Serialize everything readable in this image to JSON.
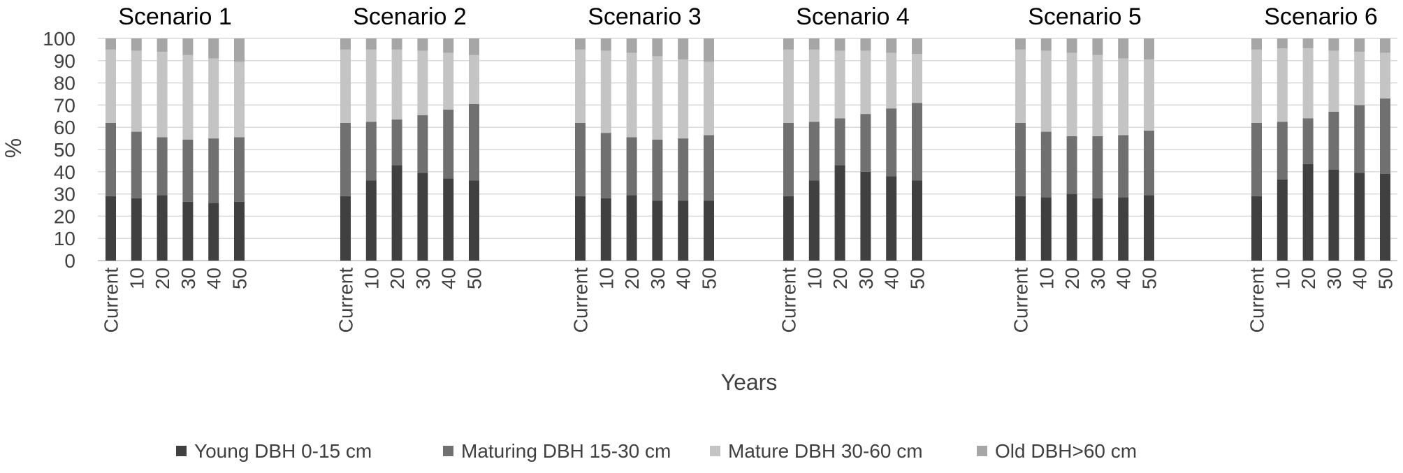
{
  "chart_data": {
    "type": "bar",
    "stacked": true,
    "stack_mode": "percent",
    "xlabel": "Years",
    "ylabel": "%",
    "ylim": [
      0,
      100
    ],
    "yticks": [
      0,
      10,
      20,
      30,
      40,
      50,
      60,
      70,
      80,
      90,
      100
    ],
    "grid": true,
    "legend_position": "bottom",
    "categories": [
      "Current",
      "10",
      "20",
      "30",
      "40",
      "50"
    ],
    "series_meta": [
      {
        "name": "Young DBH 0-15 cm",
        "color": "#404040"
      },
      {
        "name": "Maturing DBH 15-30 cm",
        "color": "#707070"
      },
      {
        "name": "Mature DBH 30-60 cm",
        "color": "#c4c4c4"
      },
      {
        "name": "Old DBH>60 cm",
        "color": "#a6a6a6"
      }
    ],
    "panels": [
      {
        "title": "Scenario 1",
        "series": [
          {
            "name": "Young DBH 0-15 cm",
            "values": [
              29,
              28,
              29.5,
              26.5,
              26,
              26.5
            ]
          },
          {
            "name": "Maturing DBH 15-30 cm",
            "values": [
              33,
              30,
              26,
              28,
              29,
              29
            ]
          },
          {
            "name": "Mature DBH 30-60 cm",
            "values": [
              33,
              36.5,
              38.5,
              38,
              36,
              34
            ]
          },
          {
            "name": "Old DBH>60 cm",
            "values": [
              5,
              5.5,
              6,
              7.5,
              9,
              10.5
            ]
          }
        ]
      },
      {
        "title": "Scenario 2",
        "series": [
          {
            "name": "Young DBH 0-15 cm",
            "values": [
              29,
              36,
              43,
              39.5,
              37,
              36
            ]
          },
          {
            "name": "Maturing DBH 15-30 cm",
            "values": [
              33,
              26.5,
              20.5,
              26,
              31,
              34.5
            ]
          },
          {
            "name": "Mature DBH 30-60 cm",
            "values": [
              33,
              32.5,
              31.5,
              29,
              25.5,
              22
            ]
          },
          {
            "name": "Old DBH>60 cm",
            "values": [
              5,
              5,
              5,
              5.5,
              6.5,
              7.5
            ]
          }
        ]
      },
      {
        "title": "Scenario 3",
        "series": [
          {
            "name": "Young DBH 0-15 cm",
            "values": [
              29,
              28,
              29.5,
              27,
              27,
              27
            ]
          },
          {
            "name": "Maturing DBH 15-30 cm",
            "values": [
              33,
              29.5,
              26,
              27.5,
              28,
              29.5
            ]
          },
          {
            "name": "Mature DBH 30-60 cm",
            "values": [
              33,
              37,
              38,
              37.5,
              35.5,
              33
            ]
          },
          {
            "name": "Old DBH>60 cm",
            "values": [
              5,
              5.5,
              6.5,
              8,
              9.5,
              10.5
            ]
          }
        ]
      },
      {
        "title": "Scenario 4",
        "series": [
          {
            "name": "Young DBH 0-15 cm",
            "values": [
              29,
              36,
              43,
              40,
              38,
              36
            ]
          },
          {
            "name": "Maturing DBH 15-30 cm",
            "values": [
              33,
              26.5,
              21,
              26,
              30.5,
              35
            ]
          },
          {
            "name": "Mature DBH 30-60 cm",
            "values": [
              33,
              32.5,
              30.5,
              28.5,
              25,
              22
            ]
          },
          {
            "name": "Old DBH>60 cm",
            "values": [
              5,
              5,
              5.5,
              5.5,
              6.5,
              7
            ]
          }
        ]
      },
      {
        "title": "Scenario 5",
        "series": [
          {
            "name": "Young DBH 0-15 cm",
            "values": [
              29,
              28.5,
              30,
              28,
              28.5,
              29.5
            ]
          },
          {
            "name": "Maturing DBH 15-30 cm",
            "values": [
              33,
              29.5,
              26,
              28,
              28,
              29
            ]
          },
          {
            "name": "Mature DBH 30-60 cm",
            "values": [
              33,
              36.5,
              37.5,
              36.5,
              34.5,
              32
            ]
          },
          {
            "name": "Old DBH>60 cm",
            "values": [
              5,
              5.5,
              6.5,
              7.5,
              9,
              9.5
            ]
          }
        ]
      },
      {
        "title": "Scenario 6",
        "series": [
          {
            "name": "Young DBH 0-15 cm",
            "values": [
              29,
              36.5,
              43.5,
              41,
              39.5,
              39
            ]
          },
          {
            "name": "Maturing DBH 15-30 cm",
            "values": [
              33,
              26,
              20.5,
              26,
              30.5,
              34
            ]
          },
          {
            "name": "Mature DBH 30-60 cm",
            "values": [
              33,
              33,
              31.5,
              27.5,
              24,
              20.5
            ]
          },
          {
            "name": "Old DBH>60 cm",
            "values": [
              5,
              4.5,
              4.5,
              5.5,
              6,
              6.5
            ]
          }
        ]
      }
    ]
  }
}
